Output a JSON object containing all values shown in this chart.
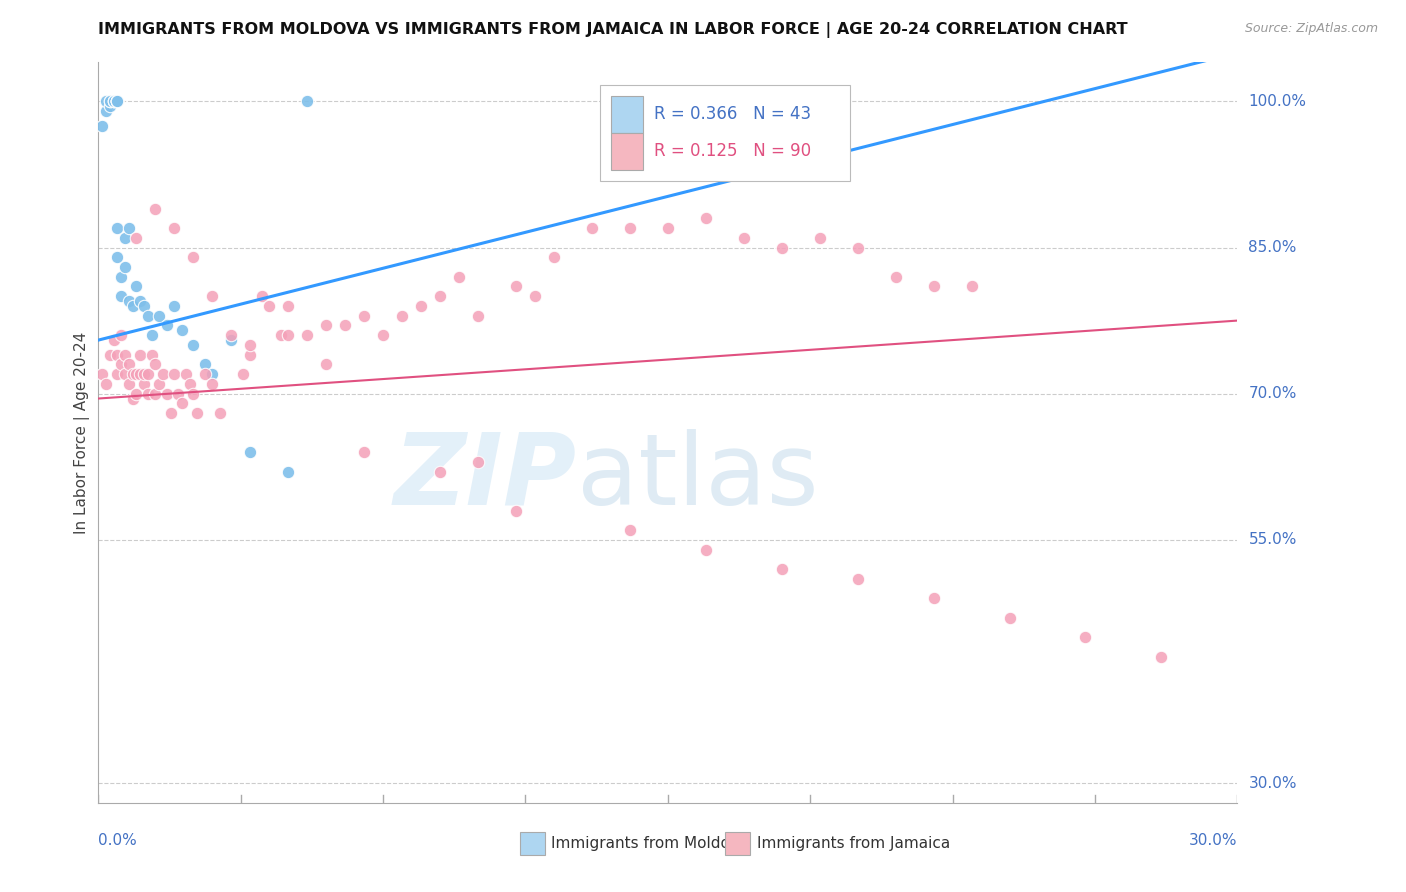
{
  "title": "IMMIGRANTS FROM MOLDOVA VS IMMIGRANTS FROM JAMAICA IN LABOR FORCE | AGE 20-24 CORRELATION CHART",
  "source": "Source: ZipAtlas.com",
  "ylabel": "In Labor Force | Age 20-24",
  "ytick_labels": [
    "100.0%",
    "85.0%",
    "70.0%",
    "55.0%",
    "30.0%"
  ],
  "ytick_values": [
    1.0,
    0.85,
    0.7,
    0.55,
    0.3
  ],
  "xlim": [
    0.0,
    0.3
  ],
  "ylim": [
    0.28,
    1.04
  ],
  "moldova_R": 0.366,
  "moldova_N": 43,
  "jamaica_R": 0.125,
  "jamaica_N": 90,
  "moldova_color": "#7fbfea",
  "jamaica_color": "#f4a0b8",
  "moldova_line_color": "#3399ff",
  "jamaica_line_color": "#e05080",
  "legend_moldova_fill": "#aed6f1",
  "legend_jamaica_fill": "#f5b7c0",
  "moldova_line_y0": 0.755,
  "moldova_line_y1": 1.05,
  "jamaica_line_y0": 0.695,
  "jamaica_line_y1": 0.775,
  "moldova_x": [
    0.001,
    0.002,
    0.002,
    0.003,
    0.003,
    0.003,
    0.004,
    0.004,
    0.004,
    0.005,
    0.005,
    0.005,
    0.005,
    0.005,
    0.005,
    0.005,
    0.005,
    0.006,
    0.006,
    0.007,
    0.007,
    0.008,
    0.008,
    0.009,
    0.01,
    0.011,
    0.012,
    0.013,
    0.014,
    0.016,
    0.018,
    0.02,
    0.022,
    0.025,
    0.028,
    0.03,
    0.035,
    0.04,
    0.05,
    0.055,
    0.14,
    0.155,
    0.165
  ],
  "moldova_y": [
    0.975,
    0.99,
    1.0,
    0.995,
    1.0,
    1.0,
    1.0,
    1.0,
    1.0,
    1.0,
    1.0,
    1.0,
    1.0,
    1.0,
    1.0,
    0.87,
    0.84,
    0.82,
    0.8,
    0.86,
    0.83,
    0.87,
    0.795,
    0.79,
    0.81,
    0.795,
    0.79,
    0.78,
    0.76,
    0.78,
    0.77,
    0.79,
    0.765,
    0.75,
    0.73,
    0.72,
    0.755,
    0.64,
    0.62,
    1.0,
    1.0,
    1.0,
    1.0
  ],
  "jamaica_x": [
    0.001,
    0.002,
    0.003,
    0.004,
    0.005,
    0.005,
    0.006,
    0.006,
    0.007,
    0.007,
    0.008,
    0.008,
    0.009,
    0.009,
    0.01,
    0.01,
    0.011,
    0.011,
    0.012,
    0.012,
    0.013,
    0.013,
    0.014,
    0.015,
    0.015,
    0.016,
    0.017,
    0.018,
    0.019,
    0.02,
    0.021,
    0.022,
    0.023,
    0.024,
    0.025,
    0.026,
    0.028,
    0.03,
    0.032,
    0.035,
    0.038,
    0.04,
    0.043,
    0.045,
    0.048,
    0.05,
    0.055,
    0.06,
    0.065,
    0.07,
    0.075,
    0.08,
    0.085,
    0.09,
    0.095,
    0.1,
    0.11,
    0.115,
    0.12,
    0.13,
    0.14,
    0.15,
    0.16,
    0.17,
    0.18,
    0.19,
    0.2,
    0.21,
    0.22,
    0.23,
    0.01,
    0.015,
    0.02,
    0.025,
    0.03,
    0.04,
    0.05,
    0.06,
    0.07,
    0.09,
    0.1,
    0.11,
    0.14,
    0.16,
    0.18,
    0.2,
    0.22,
    0.24,
    0.26,
    0.28
  ],
  "jamaica_y": [
    0.72,
    0.71,
    0.74,
    0.755,
    0.74,
    0.72,
    0.73,
    0.76,
    0.72,
    0.74,
    0.73,
    0.71,
    0.72,
    0.695,
    0.7,
    0.72,
    0.74,
    0.72,
    0.71,
    0.72,
    0.7,
    0.72,
    0.74,
    0.73,
    0.7,
    0.71,
    0.72,
    0.7,
    0.68,
    0.72,
    0.7,
    0.69,
    0.72,
    0.71,
    0.7,
    0.68,
    0.72,
    0.71,
    0.68,
    0.76,
    0.72,
    0.74,
    0.8,
    0.79,
    0.76,
    0.79,
    0.76,
    0.77,
    0.77,
    0.78,
    0.76,
    0.78,
    0.79,
    0.8,
    0.82,
    0.78,
    0.81,
    0.8,
    0.84,
    0.87,
    0.87,
    0.87,
    0.88,
    0.86,
    0.85,
    0.86,
    0.85,
    0.82,
    0.81,
    0.81,
    0.86,
    0.89,
    0.87,
    0.84,
    0.8,
    0.75,
    0.76,
    0.73,
    0.64,
    0.62,
    0.63,
    0.58,
    0.56,
    0.54,
    0.52,
    0.51,
    0.49,
    0.47,
    0.45,
    0.43
  ]
}
